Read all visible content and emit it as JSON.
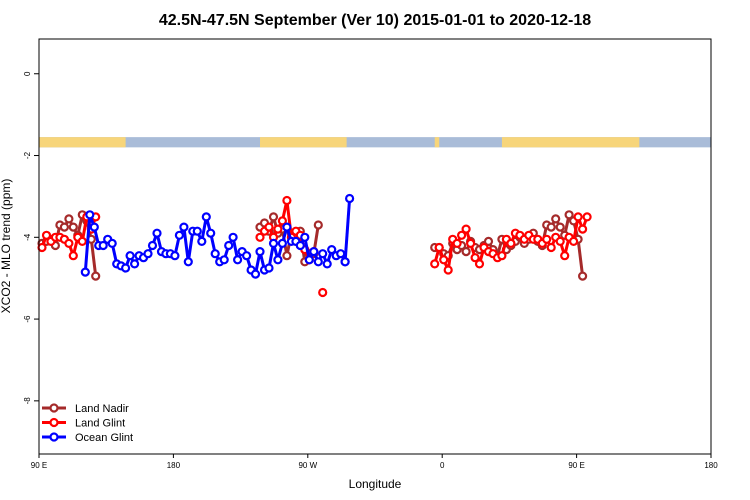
{
  "chart_data": {
    "type": "line",
    "title": "42.5N-47.5N September (Ver 10)   2015-01-01 to 2020-12-18",
    "xlabel": "Longitude",
    "ylabel": "XCO2 - MLO trend (ppm)",
    "x_axis": {
      "range_deg_unwrapped": [
        90,
        450
      ],
      "ticks": [
        {
          "value": 90,
          "label": "90 E"
        },
        {
          "value": 180,
          "label": "180"
        },
        {
          "value": 270,
          "label": "90 W"
        },
        {
          "value": 360,
          "label": "0"
        },
        {
          "value": 450,
          "label": "90 E"
        },
        {
          "value": 540,
          "label": "180"
        }
      ],
      "range": [
        90,
        540
      ]
    },
    "y_axis": {
      "range": [
        -9.3,
        0.85
      ],
      "ticks": [
        {
          "value": 0,
          "label": "0"
        },
        {
          "value": -2,
          "label": "-2"
        },
        {
          "value": -4,
          "label": "-4"
        },
        {
          "value": -6,
          "label": "-6"
        },
        {
          "value": -8,
          "label": "-8"
        }
      ]
    },
    "grid": false,
    "legend_position": "bottom-left",
    "land_ocean_band": {
      "y_range": [
        -1.8,
        -1.55
      ],
      "land_color": "#f7d57a",
      "ocean_color": "#a9bcd8",
      "land_intervals": [
        [
          90,
          148
        ],
        [
          238,
          296
        ],
        [
          355,
          358
        ],
        [
          400,
          492
        ]
      ]
    },
    "series": [
      {
        "name": "Land Nadir",
        "color": "#a52a2a",
        "segments": [
          [
            [
              92,
              -4.15
            ],
            [
              95,
              -4.1
            ],
            [
              98,
              -4.05
            ],
            [
              101,
              -4.2
            ],
            [
              104,
              -3.7
            ],
            [
              107,
              -3.75
            ],
            [
              110,
              -3.55
            ],
            [
              113,
              -3.75
            ],
            [
              116,
              -3.95
            ],
            [
              119,
              -3.45
            ],
            [
              122,
              -3.6
            ],
            [
              125,
              -4.05
            ],
            [
              128,
              -4.95
            ]
          ],
          [
            [
              238,
              -3.75
            ],
            [
              241,
              -3.65
            ],
            [
              244,
              -3.85
            ],
            [
              247,
              -3.5
            ],
            [
              250,
              -3.9
            ],
            [
              253,
              -3.8
            ],
            [
              256,
              -4.45
            ],
            [
              259,
              -3.9
            ],
            [
              262,
              -4.1
            ],
            [
              265,
              -3.85
            ],
            [
              268,
              -4.6
            ],
            [
              271,
              -4.4
            ],
            [
              274,
              -4.4
            ],
            [
              277,
              -3.7
            ]
          ],
          [
            [
              355,
              -4.25
            ],
            [
              358,
              -4.25
            ],
            [
              361,
              -4.4
            ],
            [
              364,
              -4.45
            ],
            [
              367,
              -4.15
            ],
            [
              370,
              -4.3
            ],
            [
              373,
              -4.2
            ],
            [
              376,
              -4.35
            ],
            [
              379,
              -4.1
            ],
            [
              382,
              -4.25
            ],
            [
              385,
              -4.3
            ],
            [
              388,
              -4.2
            ],
            [
              391,
              -4.1
            ],
            [
              394,
              -4.3
            ],
            [
              397,
              -4.45
            ],
            [
              400,
              -4.05
            ],
            [
              403,
              -4.3
            ],
            [
              406,
              -4.2
            ],
            [
              409,
              -4.1
            ],
            [
              412,
              -4.0
            ],
            [
              415,
              -4.15
            ],
            [
              418,
              -4.05
            ],
            [
              421,
              -3.9
            ],
            [
              424,
              -4.1
            ],
            [
              427,
              -4.2
            ],
            [
              430,
              -3.7
            ],
            [
              433,
              -3.75
            ],
            [
              436,
              -3.55
            ],
            [
              439,
              -3.75
            ],
            [
              442,
              -3.95
            ],
            [
              445,
              -3.45
            ],
            [
              448,
              -3.6
            ],
            [
              451,
              -4.05
            ],
            [
              454,
              -4.95
            ]
          ]
        ]
      },
      {
        "name": "Land Glint",
        "color": "#ff0000",
        "segments": [
          [
            [
              92,
              -4.25
            ],
            [
              95,
              -3.95
            ],
            [
              98,
              -4.1
            ],
            [
              101,
              -4.0
            ],
            [
              104,
              -4.0
            ],
            [
              107,
              -4.05
            ],
            [
              110,
              -4.15
            ],
            [
              113,
              -4.45
            ],
            [
              116,
              -4.0
            ],
            [
              119,
              -4.1
            ],
            [
              122,
              -3.5
            ],
            [
              125,
              -3.8
            ],
            [
              128,
              -3.5
            ]
          ],
          [
            [
              238,
              -4.0
            ],
            [
              241,
              -3.85
            ],
            [
              244,
              -3.75
            ],
            [
              247,
              -4.0
            ],
            [
              250,
              -3.8
            ],
            [
              253,
              -3.6
            ],
            [
              256,
              -3.1
            ],
            [
              259,
              -4.0
            ],
            [
              262,
              -3.85
            ],
            [
              265,
              -3.95
            ],
            [
              268,
              -4.3
            ],
            [
              271,
              -4.55
            ],
            [
              274,
              -4.35
            ]
          ],
          [
            [
              280,
              -5.35
            ]
          ],
          [
            [
              355,
              -4.65
            ],
            [
              358,
              -4.25
            ],
            [
              361,
              -4.55
            ],
            [
              364,
              -4.8
            ],
            [
              367,
              -4.05
            ],
            [
              370,
              -4.15
            ],
            [
              373,
              -3.95
            ],
            [
              376,
              -3.8
            ],
            [
              379,
              -4.15
            ],
            [
              382,
              -4.5
            ],
            [
              385,
              -4.65
            ],
            [
              388,
              -4.25
            ],
            [
              391,
              -4.35
            ],
            [
              394,
              -4.4
            ],
            [
              397,
              -4.5
            ],
            [
              400,
              -4.45
            ],
            [
              403,
              -4.05
            ],
            [
              406,
              -4.15
            ],
            [
              409,
              -3.9
            ],
            [
              412,
              -3.95
            ],
            [
              415,
              -4.05
            ],
            [
              418,
              -3.95
            ],
            [
              421,
              -4.05
            ],
            [
              424,
              -4.05
            ],
            [
              427,
              -4.15
            ],
            [
              430,
              -4.05
            ],
            [
              433,
              -4.25
            ],
            [
              436,
              -4.0
            ],
            [
              439,
              -4.1
            ],
            [
              442,
              -4.45
            ],
            [
              445,
              -4.0
            ],
            [
              448,
              -4.1
            ],
            [
              451,
              -3.5
            ],
            [
              454,
              -3.8
            ],
            [
              457,
              -3.5
            ]
          ]
        ]
      },
      {
        "name": "Ocean Glint",
        "color": "#0000ff",
        "segments": [
          [
            [
              121,
              -4.85
            ],
            [
              124,
              -3.45
            ],
            [
              127,
              -3.75
            ],
            [
              130,
              -4.2
            ],
            [
              133,
              -4.2
            ],
            [
              136,
              -4.05
            ],
            [
              139,
              -4.15
            ],
            [
              142,
              -4.65
            ],
            [
              145,
              -4.7
            ],
            [
              148,
              -4.75
            ],
            [
              151,
              -4.45
            ],
            [
              154,
              -4.65
            ],
            [
              157,
              -4.45
            ],
            [
              160,
              -4.5
            ],
            [
              163,
              -4.4
            ],
            [
              166,
              -4.2
            ],
            [
              169,
              -3.9
            ],
            [
              172,
              -4.35
            ],
            [
              175,
              -4.4
            ],
            [
              178,
              -4.4
            ],
            [
              181,
              -4.45
            ],
            [
              184,
              -3.95
            ],
            [
              187,
              -3.75
            ],
            [
              190,
              -4.6
            ],
            [
              193,
              -3.85
            ],
            [
              196,
              -3.85
            ],
            [
              199,
              -4.1
            ],
            [
              202,
              -3.5
            ],
            [
              205,
              -3.9
            ],
            [
              208,
              -4.4
            ],
            [
              211,
              -4.6
            ],
            [
              214,
              -4.55
            ],
            [
              217,
              -4.2
            ],
            [
              220,
              -4.0
            ],
            [
              223,
              -4.55
            ],
            [
              226,
              -4.35
            ],
            [
              229,
              -4.45
            ],
            [
              232,
              -4.8
            ],
            [
              235,
              -4.9
            ],
            [
              238,
              -4.35
            ],
            [
              241,
              -4.8
            ],
            [
              244,
              -4.75
            ],
            [
              247,
              -4.15
            ],
            [
              250,
              -4.55
            ],
            [
              253,
              -4.15
            ],
            [
              256,
              -3.75
            ],
            [
              259,
              -4.1
            ],
            [
              262,
              -4.1
            ],
            [
              265,
              -4.2
            ],
            [
              268,
              -4.0
            ],
            [
              271,
              -4.55
            ],
            [
              274,
              -4.35
            ],
            [
              277,
              -4.6
            ],
            [
              280,
              -4.4
            ],
            [
              283,
              -4.65
            ],
            [
              286,
              -4.3
            ],
            [
              289,
              -4.45
            ],
            [
              292,
              -4.4
            ],
            [
              295,
              -4.6
            ]
          ],
          [
            [
              295,
              -4.6
            ],
            [
              298,
              -3.05
            ]
          ]
        ]
      }
    ]
  }
}
